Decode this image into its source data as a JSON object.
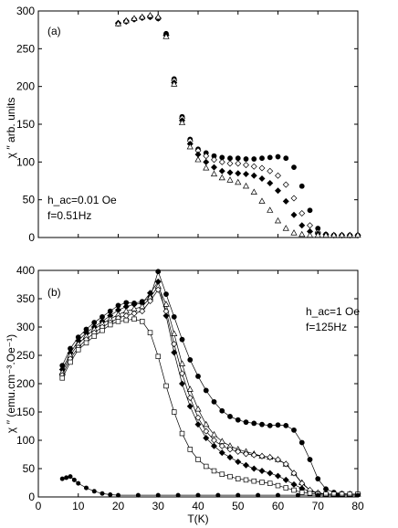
{
  "chart_data": [
    {
      "panel": "a",
      "type": "scatter",
      "panel_label": "(a)",
      "annotation_lines": [
        "h_ac=0.01 Oe",
        "f=0.51Hz"
      ],
      "ylabel": "χ ′′ arb. units",
      "xlim": [
        0,
        80
      ],
      "ylim": [
        0,
        300
      ],
      "yticks": [
        0,
        50,
        100,
        150,
        200,
        250,
        300
      ],
      "series": [
        {
          "marker": "filled-circle",
          "x": [
            20,
            22,
            24,
            26,
            28,
            30,
            32,
            34,
            36,
            38,
            40,
            42,
            44,
            46,
            48,
            50,
            52,
            54,
            56,
            58,
            60,
            62,
            64,
            66,
            68,
            70,
            72,
            74,
            76,
            78,
            80
          ],
          "y": [
            283,
            286,
            289,
            291,
            292,
            290,
            270,
            210,
            160,
            130,
            117,
            112,
            108,
            106,
            105,
            105,
            104,
            104,
            105,
            106,
            107,
            105,
            93,
            68,
            36,
            12,
            4,
            3,
            3,
            3,
            3
          ]
        },
        {
          "marker": "open-diamond",
          "x": [
            20,
            22,
            24,
            26,
            28,
            30,
            32,
            34,
            36,
            38,
            40,
            42,
            44,
            46,
            48,
            50,
            52,
            54,
            56,
            58,
            60,
            62,
            64,
            66,
            68,
            70,
            72,
            74,
            76,
            78,
            80
          ],
          "y": [
            284,
            286,
            289,
            291,
            292,
            290,
            268,
            208,
            158,
            128,
            115,
            108,
            103,
            100,
            98,
            98,
            96,
            94,
            92,
            88,
            82,
            70,
            52,
            32,
            16,
            7,
            4,
            3,
            3,
            3,
            3
          ]
        },
        {
          "marker": "filled-diamond",
          "x": [
            20,
            22,
            24,
            26,
            28,
            30,
            32,
            34,
            36,
            38,
            40,
            42,
            44,
            46,
            48,
            50,
            52,
            54,
            56,
            58,
            60,
            62,
            64,
            66,
            68,
            70,
            72,
            74,
            76,
            78,
            80
          ],
          "y": [
            284,
            287,
            289,
            291,
            293,
            291,
            268,
            205,
            155,
            124,
            110,
            100,
            93,
            88,
            86,
            85,
            84,
            82,
            78,
            72,
            62,
            48,
            30,
            16,
            8,
            5,
            4,
            3,
            3,
            3,
            3
          ]
        },
        {
          "marker": "open-triangle",
          "x": [
            20,
            22,
            24,
            26,
            28,
            30,
            32,
            34,
            36,
            38,
            40,
            42,
            44,
            46,
            48,
            50,
            52,
            54,
            56,
            58,
            60,
            62,
            64,
            66,
            68,
            70,
            72,
            74,
            76,
            78,
            80
          ],
          "y": [
            283,
            287,
            290,
            292,
            294,
            292,
            266,
            203,
            152,
            120,
            103,
            92,
            84,
            79,
            76,
            73,
            68,
            60,
            48,
            36,
            22,
            12,
            6,
            4,
            3,
            3,
            3,
            3,
            3,
            3,
            3
          ]
        }
      ]
    },
    {
      "panel": "b",
      "type": "line",
      "panel_label": "(b)",
      "annotation_lines": [
        "h_ac=1 Oe",
        "f=125Hz"
      ],
      "ylabel": "χ ′′ (emu.cm⁻³.Oe⁻¹)",
      "xlabel": "T(K)",
      "xlim": [
        0,
        80
      ],
      "ylim": [
        0,
        400
      ],
      "xticks": [
        0,
        10,
        20,
        30,
        40,
        50,
        60,
        70,
        80
      ],
      "yticks": [
        0,
        50,
        100,
        150,
        200,
        250,
        300,
        350,
        400
      ],
      "series": [
        {
          "marker": "filled-circle",
          "x": [
            6,
            8,
            10,
            12,
            14,
            16,
            18,
            20,
            22,
            24,
            26,
            28,
            30,
            32,
            34,
            36,
            38,
            40,
            42,
            44,
            46,
            48,
            50,
            52,
            54,
            56,
            58,
            60,
            62,
            64,
            66,
            68,
            70,
            72,
            74,
            76,
            78,
            80
          ],
          "y": [
            232,
            262,
            282,
            296,
            308,
            318,
            328,
            338,
            343,
            342,
            345,
            352,
            398,
            358,
            318,
            278,
            242,
            213,
            188,
            168,
            152,
            142,
            136,
            132,
            130,
            128,
            126,
            127,
            126,
            118,
            96,
            66,
            32,
            14,
            8,
            6,
            5,
            5
          ]
        },
        {
          "marker": "filled-diamond",
          "x": [
            6,
            8,
            10,
            12,
            14,
            16,
            18,
            20,
            22,
            24,
            26,
            28,
            30,
            32,
            34,
            36,
            38,
            40,
            42,
            44,
            46,
            48,
            50,
            52,
            54,
            56,
            58,
            60,
            62,
            64,
            66,
            68,
            70,
            72,
            74,
            76,
            78,
            80
          ],
          "y": [
            225,
            254,
            276,
            290,
            300,
            310,
            320,
            330,
            336,
            340,
            342,
            360,
            380,
            320,
            255,
            200,
            160,
            128,
            104,
            90,
            78,
            70,
            62,
            56,
            50,
            46,
            42,
            37,
            30,
            22,
            15,
            10,
            7,
            5,
            5,
            5,
            5,
            5
          ]
        },
        {
          "marker": "open-triangle",
          "x": [
            6,
            8,
            10,
            12,
            14,
            16,
            18,
            20,
            22,
            24,
            26,
            28,
            30,
            32,
            34,
            36,
            38,
            40,
            42,
            44,
            46,
            48,
            50,
            52,
            54,
            56,
            58,
            60,
            62,
            64,
            66,
            68,
            70,
            72,
            74,
            76,
            78,
            80
          ],
          "y": [
            220,
            250,
            270,
            284,
            296,
            306,
            314,
            322,
            328,
            332,
            336,
            352,
            372,
            340,
            288,
            235,
            190,
            155,
            128,
            110,
            98,
            90,
            84,
            80,
            76,
            72,
            70,
            66,
            58,
            42,
            25,
            12,
            7,
            5,
            5,
            5,
            5,
            5
          ]
        },
        {
          "marker": "open-diamond",
          "x": [
            6,
            8,
            10,
            12,
            14,
            16,
            18,
            20,
            22,
            24,
            26,
            28,
            30,
            32,
            34,
            36,
            38,
            40,
            42,
            44,
            46,
            48,
            50,
            52,
            54,
            56,
            58,
            60,
            62,
            64,
            66,
            68,
            70,
            72,
            74,
            76,
            78,
            80
          ],
          "y": [
            215,
            244,
            264,
            278,
            290,
            300,
            308,
            316,
            320,
            324,
            328,
            346,
            366,
            328,
            270,
            218,
            175,
            140,
            116,
            100,
            90,
            84,
            80,
            76,
            74,
            72,
            70,
            66,
            58,
            42,
            24,
            12,
            7,
            5,
            5,
            5,
            5,
            5
          ]
        },
        {
          "marker": "open-square",
          "x": [
            6,
            8,
            10,
            12,
            14,
            16,
            18,
            20,
            22,
            24,
            26,
            28,
            30,
            32,
            34,
            36,
            38,
            40,
            42,
            44,
            46,
            48,
            50,
            52,
            54,
            56,
            58,
            60,
            62,
            64,
            66,
            68,
            70,
            72,
            74,
            76,
            78,
            80
          ],
          "y": [
            210,
            238,
            260,
            272,
            284,
            294,
            304,
            310,
            312,
            314,
            310,
            290,
            248,
            196,
            150,
            112,
            84,
            66,
            54,
            46,
            40,
            36,
            32,
            30,
            28,
            26,
            24,
            20,
            16,
            12,
            8,
            6,
            5,
            5,
            5,
            5,
            5,
            5
          ]
        },
        {
          "marker": "filled-circle-small",
          "x": [
            6,
            7,
            8,
            9,
            10,
            12,
            14,
            16,
            18,
            20,
            25,
            30,
            35,
            40,
            45,
            50,
            55,
            60,
            65,
            70,
            75,
            80
          ],
          "y": [
            32,
            34,
            36,
            30,
            24,
            16,
            10,
            6,
            4,
            3,
            3,
            3,
            3,
            3,
            3,
            3,
            3,
            3,
            3,
            3,
            3,
            3
          ]
        }
      ]
    }
  ]
}
